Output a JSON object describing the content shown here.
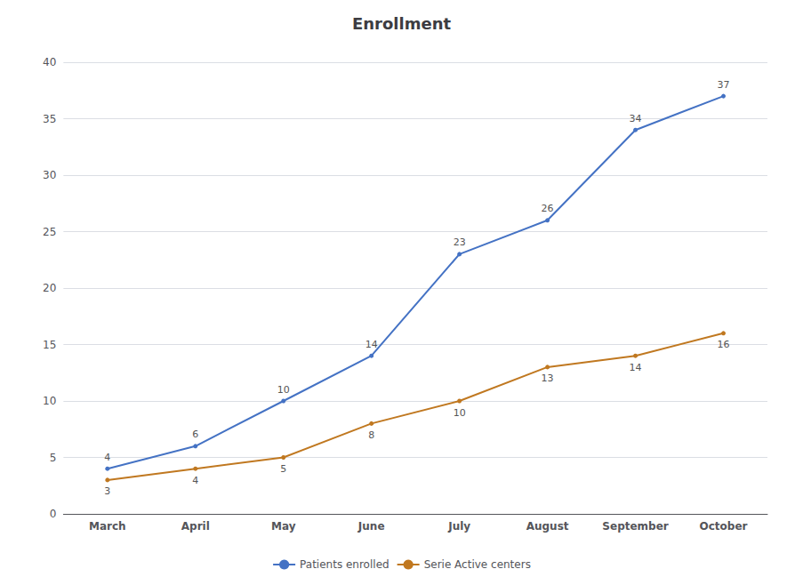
{
  "chart_data": {
    "type": "line",
    "title": "Enrollment",
    "categories": [
      "March",
      "April",
      "May",
      "June",
      "July",
      "August",
      "September",
      "October"
    ],
    "series": [
      {
        "name": "Patients enrolled",
        "color": "#4472c4",
        "values": [
          4,
          6,
          10,
          14,
          23,
          26,
          34,
          37
        ]
      },
      {
        "name": "Serie Active centers",
        "color": "#c07820",
        "values": [
          3,
          4,
          5,
          8,
          10,
          13,
          14,
          16
        ]
      }
    ],
    "ylim": [
      0,
      40
    ],
    "yticks": [
      0,
      5,
      10,
      15,
      20,
      25,
      30,
      35,
      40
    ],
    "grid": true,
    "legend": "bottom",
    "data_labels": true
  }
}
